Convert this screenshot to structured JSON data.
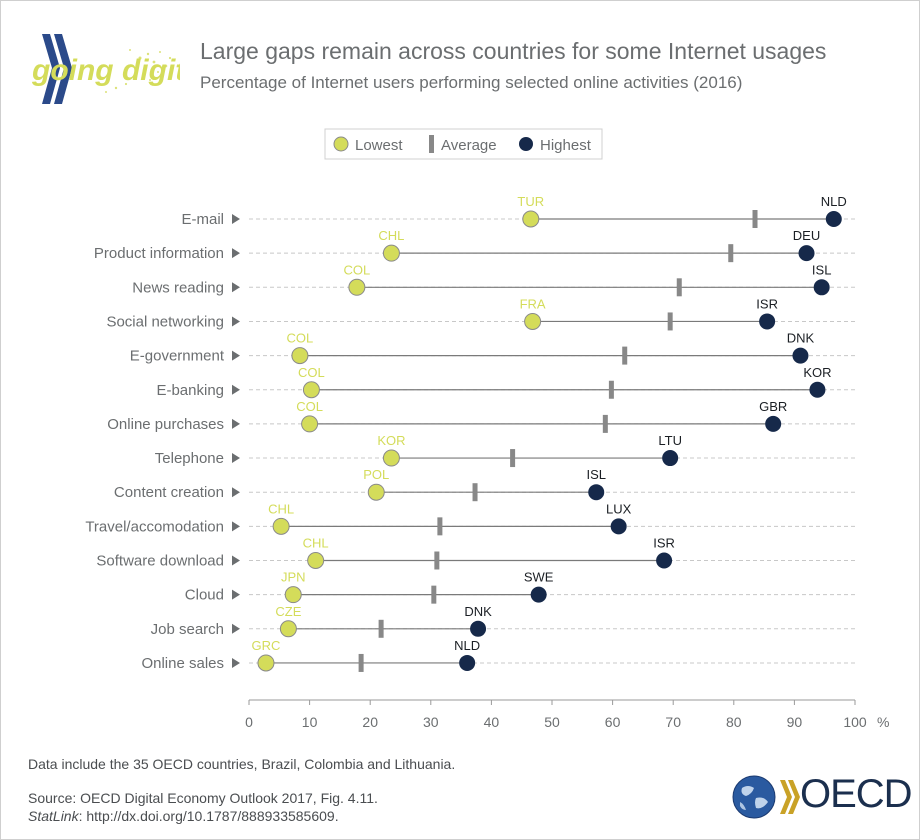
{
  "header": {
    "title": "Large gaps remain across countries for some Internet usages",
    "subtitle": "Percentage of Internet users performing selected online activities (2016)",
    "logo_text": "going digital"
  },
  "colors": {
    "lowest": "#d4dc5a",
    "highest": "#16294a",
    "average": "#888888",
    "label": "#6b6e70",
    "grid": "#c8c8c8"
  },
  "chart_data": {
    "type": "dot-range",
    "title": "Large gaps remain across countries for some Internet usages",
    "subtitle": "Percentage of Internet users performing selected online activities (2016)",
    "unit": "%",
    "xlim": [
      0,
      100
    ],
    "xticks": [
      0,
      10,
      20,
      30,
      40,
      50,
      60,
      70,
      80,
      90,
      100
    ],
    "legend": {
      "placement": "top-center",
      "entries": [
        "Lowest",
        "Average",
        "Highest"
      ]
    },
    "rows": [
      {
        "category": "E-mail",
        "low": 46.5,
        "low_country": "TUR",
        "avg": 83.5,
        "high": 96.5,
        "high_country": "NLD"
      },
      {
        "category": "Product information",
        "low": 23.5,
        "low_country": "CHL",
        "avg": 79.5,
        "high": 92.0,
        "high_country": "DEU"
      },
      {
        "category": "News reading",
        "low": 17.8,
        "low_country": "COL",
        "avg": 71.0,
        "high": 94.5,
        "high_country": "ISL"
      },
      {
        "category": "Social networking",
        "low": 46.8,
        "low_country": "FRA",
        "avg": 69.5,
        "high": 85.5,
        "high_country": "ISR"
      },
      {
        "category": "E-government",
        "low": 8.4,
        "low_country": "COL",
        "avg": 62.0,
        "high": 91.0,
        "high_country": "DNK"
      },
      {
        "category": "E-banking",
        "low": 10.3,
        "low_country": "COL",
        "avg": 59.8,
        "high": 93.8,
        "high_country": "KOR"
      },
      {
        "category": "Online purchases",
        "low": 10.0,
        "low_country": "COL",
        "avg": 58.8,
        "high": 86.5,
        "high_country": "GBR"
      },
      {
        "category": "Telephone",
        "low": 23.5,
        "low_country": "KOR",
        "avg": 43.5,
        "high": 69.5,
        "high_country": "LTU"
      },
      {
        "category": "Content creation",
        "low": 21.0,
        "low_country": "POL",
        "avg": 37.3,
        "high": 57.3,
        "high_country": "ISL"
      },
      {
        "category": "Travel/accomodation",
        "low": 5.3,
        "low_country": "CHL",
        "avg": 31.5,
        "high": 61.0,
        "high_country": "LUX"
      },
      {
        "category": "Software download",
        "low": 11.0,
        "low_country": "CHL",
        "avg": 31.0,
        "high": 68.5,
        "high_country": "ISR"
      },
      {
        "category": "Cloud",
        "low": 7.3,
        "low_country": "JPN",
        "avg": 30.5,
        "high": 47.8,
        "high_country": "SWE"
      },
      {
        "category": "Job search",
        "low": 6.5,
        "low_country": "CZE",
        "avg": 21.8,
        "high": 37.8,
        "high_country": "DNK"
      },
      {
        "category": "Online sales",
        "low": 2.8,
        "low_country": "GRC",
        "avg": 18.5,
        "high": 36.0,
        "high_country": "NLD"
      }
    ]
  },
  "notes": {
    "coverage": "Data include the 35 OECD countries, Brazil, Colombia and Lithuania.",
    "source": "Source: OECD Digital Economy Outlook 2017, Fig. 4.11.",
    "statlink_label": "StatLink",
    "statlink_url": ": http://dx.doi.org/10.1787/888933585609."
  },
  "footer": {
    "brand": "OECD"
  }
}
